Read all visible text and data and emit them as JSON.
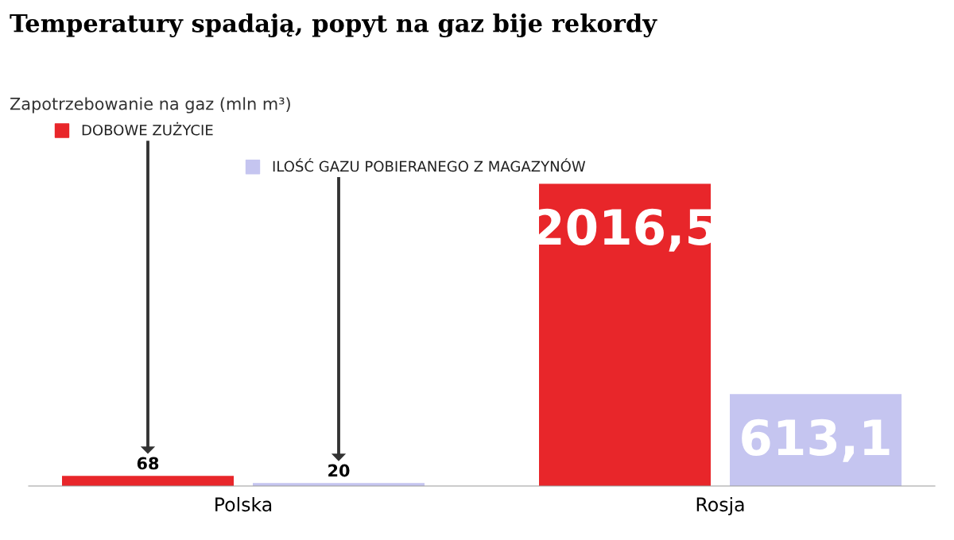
{
  "chart_data": {
    "type": "bar",
    "title": "Temperatury spadają, popyt na gaz bije rekordy",
    "subtitle": "Zapotrzebowanie na gaz (mln m³)",
    "categories": [
      "Polska",
      "Rosja"
    ],
    "series": [
      {
        "name": "DOBOWE ZUŻYCIE",
        "color": "#e8262a",
        "values": [
          68,
          2016.5
        ],
        "value_labels": [
          "68",
          "2016,5"
        ]
      },
      {
        "name": "ILOŚĆ GAZU POBIERANEGO Z MAGAZYNÓW",
        "color": "#c5c5f0",
        "values": [
          20,
          613.1
        ],
        "value_labels": [
          "20",
          "613,1"
        ]
      }
    ],
    "grid": false,
    "legend": "top left"
  }
}
